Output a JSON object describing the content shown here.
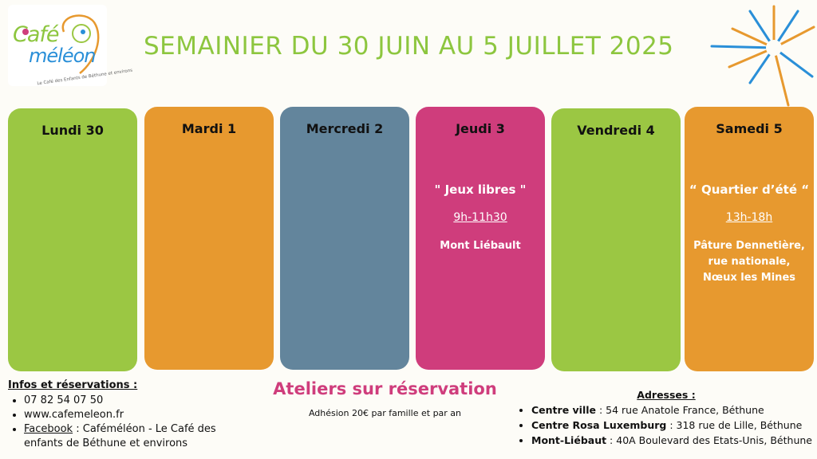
{
  "logo": {
    "word1": "Café",
    "word2": "méléon",
    "tagline": "Le Café des Enfants de Béthune et environs"
  },
  "title": "SEMAINIER DU 30 JUIN AU 5 JUILLET 2025",
  "days": [
    {
      "label": "Lundi 30",
      "color": "#9bc743"
    },
    {
      "label": "Mardi 1",
      "color": "#e7992f"
    },
    {
      "label": "Mercredi 2",
      "color": "#63859c"
    },
    {
      "label": "Jeudi 3",
      "color": "#cf3d7c",
      "event_title": "\" Jeux libres \"",
      "event_time": "9h-11h30",
      "event_place": "Mont Liébault"
    },
    {
      "label": "Vendredi 4",
      "color": "#9bc743"
    },
    {
      "label": "Samedi 5",
      "color": "#e7992f",
      "event_title": "“ Quartier d’été “",
      "event_time": "13h-18h",
      "event_place_lines": [
        "Pâture Dennetière,",
        "rue nationale,",
        "Nœux les Mines"
      ]
    }
  ],
  "info": {
    "heading": "Infos et réservations :",
    "phone": "07 82 54 07 50",
    "website": "www.cafemeleon.fr",
    "facebook_label": "Facebook",
    "facebook_text": " : Caféméléon - Le Café des enfants de Béthune et environs"
  },
  "ateliers": {
    "heading": "Ateliers sur réservation",
    "note": "Adhésion 20€ par famille et par an"
  },
  "addresses": {
    "heading": "Adresses :",
    "items": [
      {
        "name": "Centre ville",
        "address": " : 54 rue Anatole France, Béthune"
      },
      {
        "name": "Centre Rosa Luxemburg",
        "address": " : 318 rue de Lille, Béthune"
      },
      {
        "name": "Mont-Liébaut",
        "address": " : 40A Boulevard des Etats-Unis, Béthune"
      }
    ]
  }
}
